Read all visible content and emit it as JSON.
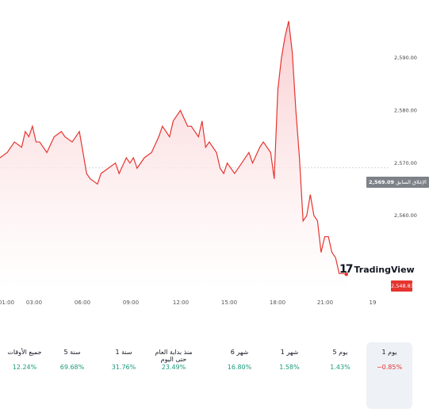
{
  "chart_data": {
    "type": "area",
    "x_ticks": [
      "01:00",
      "03:00",
      "06:00",
      "09:00",
      "12:00",
      "15:00",
      "18:00",
      "21:00",
      "19"
    ],
    "y_ticks": [
      "2,590.00",
      "2,580.00",
      "2,570.00",
      "2,560.00"
    ],
    "ylim": [
      2546,
      2598
    ],
    "xlim": [
      0,
      100
    ],
    "previous_close_value": 2569.09,
    "previous_close_label": "الإغلاق السابق",
    "previous_close_text": "2,569.09",
    "last_price_text": "2,548.83",
    "line_color": "#e5352f",
    "x": [
      0,
      2,
      4,
      6,
      7,
      8,
      9,
      10,
      11,
      13,
      15,
      17,
      18,
      20,
      22,
      23,
      24,
      25,
      27,
      28,
      30,
      32,
      33,
      35,
      36,
      37,
      38,
      40,
      42,
      44,
      45,
      47,
      48,
      50,
      52,
      53,
      55,
      56,
      57,
      58,
      60,
      61,
      62,
      63,
      65,
      67,
      68,
      69,
      70,
      72,
      73,
      75,
      76,
      77,
      78,
      79,
      80,
      81,
      82,
      83,
      84,
      85,
      86,
      87,
      88,
      89,
      90,
      91,
      92,
      93,
      94,
      95,
      96
    ],
    "values": [
      2571,
      2572,
      2574,
      2573,
      2576,
      2575,
      2577,
      2574,
      2574,
      2572,
      2575,
      2576,
      2575,
      2574,
      2576,
      2572,
      2568,
      2567,
      2566,
      2568,
      2569,
      2570,
      2568,
      2571,
      2570,
      2571,
      2569,
      2571,
      2572,
      2575,
      2577,
      2575,
      2578,
      2580,
      2577,
      2577,
      2575,
      2578,
      2573,
      2574,
      2572,
      2569,
      2568,
      2570,
      2568,
      2570,
      2571,
      2572,
      2570,
      2573,
      2574,
      2572,
      2567,
      2584,
      2590,
      2594,
      2597,
      2591,
      2580,
      2571,
      2559,
      2560,
      2564,
      2560,
      2559,
      2553,
      2556,
      2556,
      2553,
      2552,
      2549,
      2549,
      2548.83
    ],
    "area_gradient": [
      "#f9c9cc",
      "#ffffff"
    ]
  },
  "periods": [
    {
      "label": "جميع الأوقات",
      "value": "12.24%",
      "trend": "pos"
    },
    {
      "label": "5 سنة",
      "value": "69.68%",
      "trend": "pos"
    },
    {
      "label": "1 سنة",
      "value": "31.76%",
      "trend": "pos"
    },
    {
      "label": "منذ بداية العام حتى اليوم",
      "value": "23.49%",
      "trend": "pos"
    },
    {
      "label": "6 شهر",
      "value": "16.80%",
      "trend": "pos"
    },
    {
      "label": "1 شهر",
      "value": "1.58%",
      "trend": "pos"
    },
    {
      "label": "5 يوم",
      "value": "1.43%",
      "trend": "pos"
    },
    {
      "label": "1 يوم",
      "value": "−0.85%",
      "trend": "neg",
      "active": true
    }
  ],
  "logo": {
    "text": "TradingView",
    "mark": "17"
  }
}
